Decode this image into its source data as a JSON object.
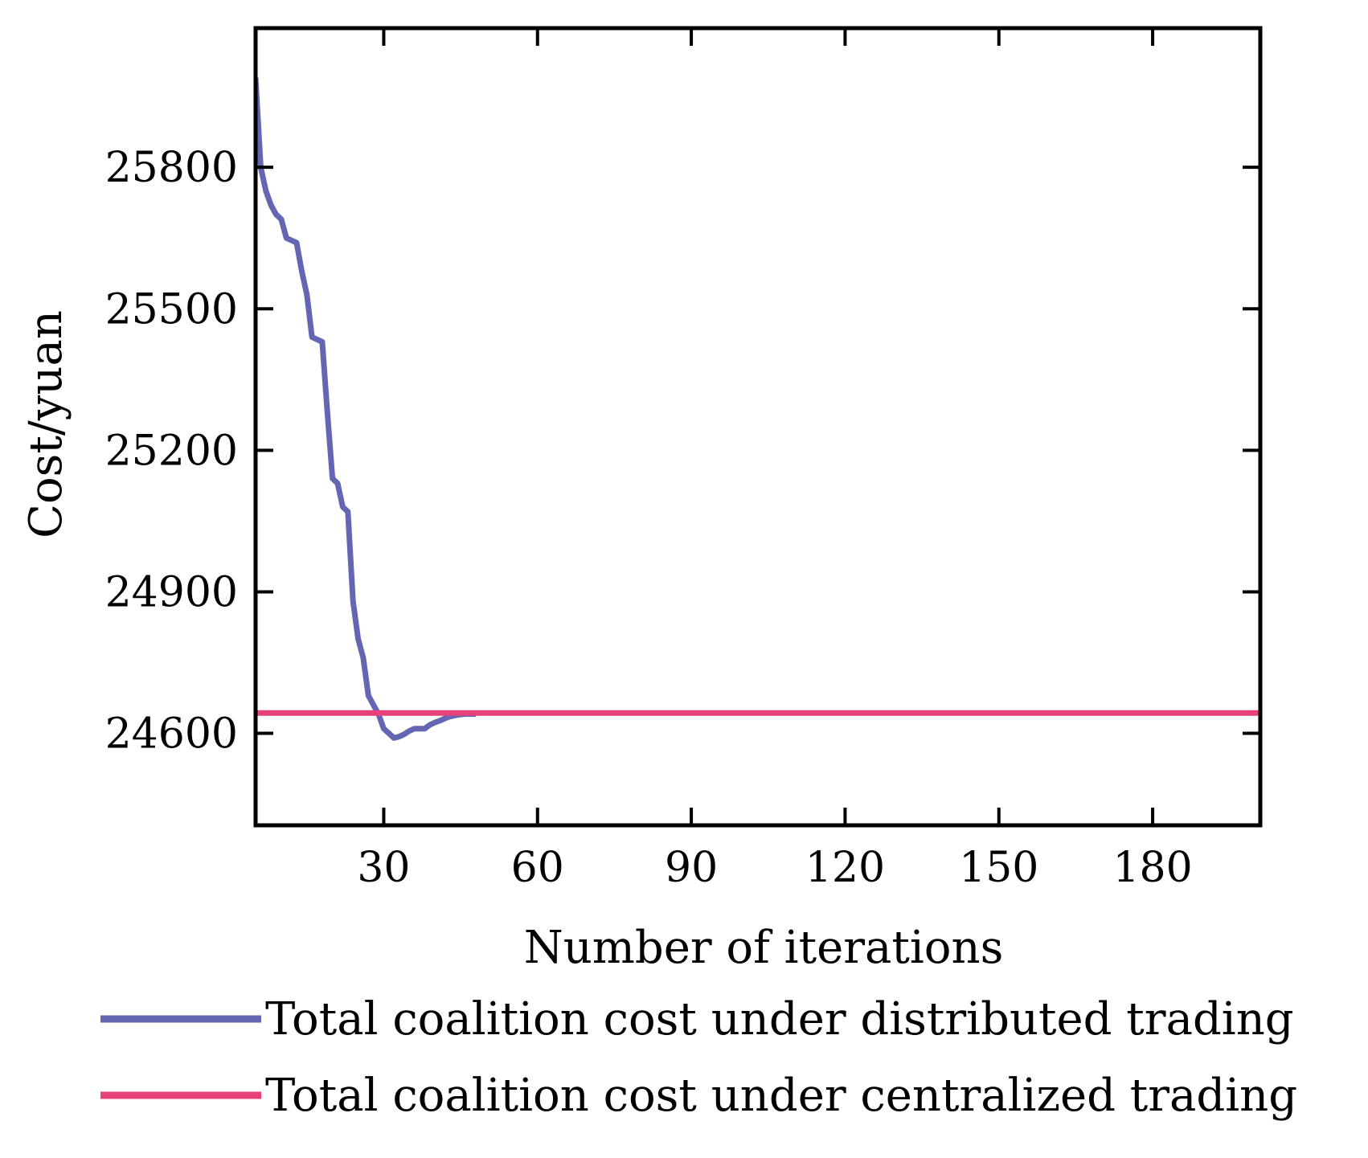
{
  "chart_data": {
    "type": "line",
    "xlabel": "Number of iterations",
    "ylabel": "Cost/yuan",
    "xlim": [
      5,
      201
    ],
    "ylim": [
      24405,
      26095
    ],
    "x_ticks": [
      30,
      60,
      90,
      120,
      150,
      180
    ],
    "y_ticks": [
      24600,
      24900,
      25200,
      25500,
      25800
    ],
    "grid": false,
    "legend_position": "bottom",
    "series": [
      {
        "name": "Total coalition cost under distributed trading",
        "color": "#6466b3",
        "x": [
          5,
          6,
          7,
          8,
          9,
          10,
          11,
          12,
          13,
          14,
          15,
          16,
          17,
          18,
          19,
          20,
          21,
          22,
          23,
          24,
          25,
          26,
          27,
          28,
          29,
          30,
          31,
          32,
          33,
          34,
          35,
          36,
          37,
          38,
          39,
          40,
          41,
          42,
          43,
          44,
          45,
          46,
          47,
          48
        ],
        "y": [
          25990,
          25800,
          25750,
          25720,
          25700,
          25690,
          25650,
          25645,
          25640,
          25580,
          25530,
          25440,
          25435,
          25430,
          25280,
          25140,
          25130,
          25080,
          25070,
          24880,
          24800,
          24760,
          24680,
          24660,
          24640,
          24610,
          24600,
          24590,
          24593,
          24598,
          24605,
          24610,
          24610,
          24610,
          24618,
          24623,
          24627,
          24632,
          24636,
          24638,
          24640,
          24641,
          24641,
          24641
        ]
      },
      {
        "name": "Total coalition cost under centralized trading",
        "color": "#e8417a",
        "x": [
          5,
          201
        ],
        "y": [
          24643,
          24643
        ]
      }
    ]
  }
}
